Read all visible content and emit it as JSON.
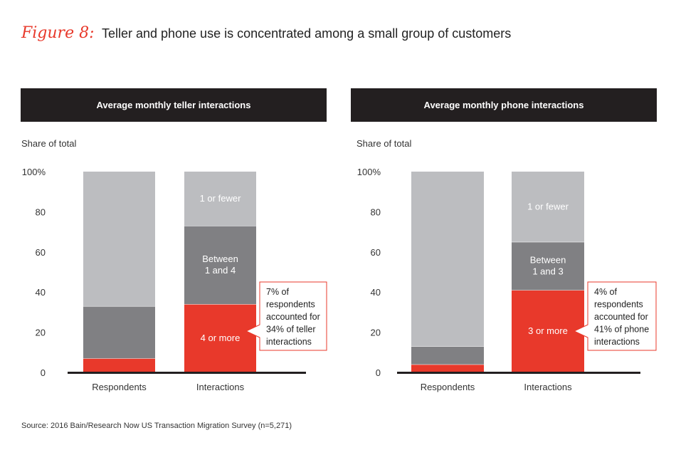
{
  "figure": {
    "label": "Figure 8:",
    "title": "Teller and phone use is concentrated among a small group of customers"
  },
  "colors": {
    "red": "#e8392b",
    "dark_gray": "#808083",
    "light_gray": "#bcbdc0",
    "header_bg": "#231f20"
  },
  "chart_data": [
    {
      "type": "bar",
      "stacked": true,
      "title": "Average monthly teller interactions",
      "ylabel": "Share of total",
      "ylim": [
        0,
        100
      ],
      "yticks": [
        "100%",
        "80",
        "60",
        "40",
        "20",
        "0"
      ],
      "categories": [
        "Respondents",
        "Interactions"
      ],
      "series": [
        {
          "name": "4 or more",
          "color": "red",
          "values": [
            7,
            34
          ],
          "labels": [
            "",
            "4 or more"
          ]
        },
        {
          "name": "Between 1 and 4",
          "color": "dark_gray",
          "values": [
            26,
            39
          ],
          "labels": [
            "",
            "Between\n1 and 4"
          ]
        },
        {
          "name": "1 or fewer",
          "color": "light_gray",
          "values": [
            67,
            27
          ],
          "labels": [
            "",
            "1 or fewer"
          ]
        }
      ],
      "callout": "7% of\nrespondents\naccounted for\n34% of teller\ninteractions"
    },
    {
      "type": "bar",
      "stacked": true,
      "title": "Average monthly phone interactions",
      "ylabel": "Share of total",
      "ylim": [
        0,
        100
      ],
      "yticks": [
        "100%",
        "80",
        "60",
        "40",
        "20",
        "0"
      ],
      "categories": [
        "Respondents",
        "Interactions"
      ],
      "series": [
        {
          "name": "3 or more",
          "color": "red",
          "values": [
            4,
            41
          ],
          "labels": [
            "",
            "3 or more"
          ]
        },
        {
          "name": "Between 1 and 3",
          "color": "dark_gray",
          "values": [
            9,
            24
          ],
          "labels": [
            "",
            "Between\n1 and 3"
          ]
        },
        {
          "name": "1 or fewer",
          "color": "light_gray",
          "values": [
            87,
            35
          ],
          "labels": [
            "",
            "1 or fewer"
          ]
        }
      ],
      "callout": "4% of\nrespondents\naccounted for\n41% of phone\ninteractions"
    }
  ],
  "source": "Source: 2016 Bain/Research Now US Transaction Migration Survey (n=5,271)"
}
